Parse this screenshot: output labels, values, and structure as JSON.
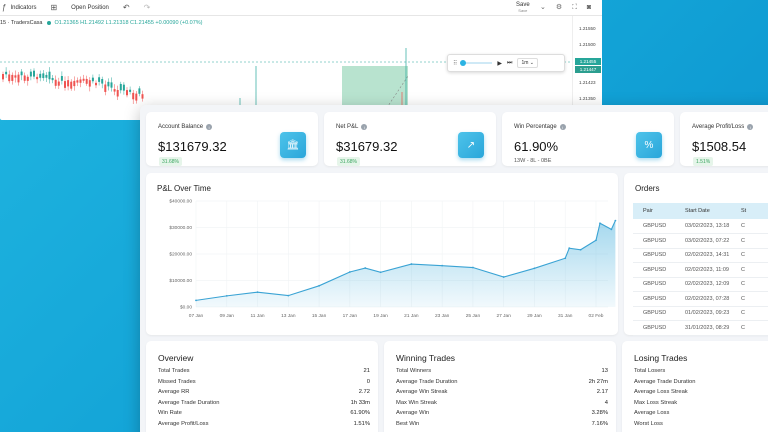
{
  "tv": {
    "toolbar": {
      "indicators": "Indicators",
      "open_position": "Open Position",
      "save": "Save",
      "save_sub": "Save"
    },
    "symbol": {
      "name": "15 · TradersCasa",
      "ohlc": "O1.21365 H1.21492 L1.21318 C1.21455 +0.00090 (+0.07%)"
    },
    "price_levels": [
      "1.21550",
      "1.21500",
      "1.21423",
      "1.21350"
    ],
    "price_tags": [
      "1.21455",
      "1.21447"
    ],
    "replay": {
      "interval": "1m"
    }
  },
  "stats": [
    {
      "label": "Account Balance",
      "value": "$131679.32",
      "pill": "31.68%",
      "icon": "bank-icon"
    },
    {
      "label": "Net P&L",
      "value": "$31679.32",
      "pill": "31.68%",
      "icon": "trend-up-icon"
    },
    {
      "label": "Win Percentage",
      "value": "61.90%",
      "sub": "13W - 8L - 0BE",
      "icon": "percent-icon"
    },
    {
      "label": "Average Profit/Loss",
      "value": "$1508.54",
      "pill": "1.51%"
    }
  ],
  "pnl": {
    "title": "P&L Over Time"
  },
  "chart_data": {
    "type": "area",
    "title": "P&L Over Time",
    "xlabel": "",
    "ylabel": "",
    "y_ticks": [
      "$40000.00",
      "$30000.00",
      "$20000.00",
      "$10000.00",
      "$0.00"
    ],
    "ylim": [
      0,
      40000
    ],
    "x_ticks": [
      "07 Jan",
      "09 Jan",
      "11 Jan",
      "13 Jan",
      "15 Jan",
      "17 Jan",
      "19 Jan",
      "21 Jan",
      "23 Jan",
      "25 Jan",
      "27 Jan",
      "29 Jan",
      "31 Jan",
      "02 Feb"
    ],
    "x": [
      "07 Jan",
      "09 Jan",
      "11 Jan",
      "13 Jan",
      "15 Jan",
      "17 Jan",
      "18 Jan",
      "19 Jan",
      "21 Jan",
      "23 Jan",
      "25 Jan",
      "27 Jan",
      "29 Jan",
      "31 Jan",
      "31 Jan",
      "01 Feb",
      "02 Feb",
      "02 Feb",
      "03 Feb",
      "03 Feb"
    ],
    "values": [
      2500,
      4200,
      5600,
      4300,
      8000,
      13200,
      14700,
      13100,
      16200,
      15600,
      14900,
      11300,
      14600,
      18400,
      22200,
      21600,
      25200,
      31600,
      29300,
      32600
    ],
    "grid": true,
    "color": "#5bb8e0"
  },
  "orders": {
    "title": "Orders",
    "columns": [
      "Pair",
      "Start Date",
      "St"
    ],
    "rows": [
      [
        "GBPUSD",
        "03/02/2023, 13:18",
        "C"
      ],
      [
        "GBPUSD",
        "03/02/2023, 07:22",
        "C"
      ],
      [
        "GBPUSD",
        "02/02/2023, 14:31",
        "C"
      ],
      [
        "GBPUSD",
        "02/02/2023, 11:09",
        "C"
      ],
      [
        "GBPUSD",
        "02/02/2023, 12:09",
        "C"
      ],
      [
        "GBPUSD",
        "02/02/2023, 07:28",
        "C"
      ],
      [
        "GBPUSD",
        "01/02/2023, 09:23",
        "C"
      ],
      [
        "GBPUSD",
        "31/01/2023, 08:29",
        "C"
      ]
    ]
  },
  "overview": {
    "title": "Overview",
    "rows": [
      [
        "Total Trades",
        "21"
      ],
      [
        "Missed Trades",
        "0"
      ],
      [
        "Average RR",
        "2.72"
      ],
      [
        "Average Trade Duration",
        "1h 33m"
      ],
      [
        "Win Rate",
        "61.90%"
      ],
      [
        "Average Profit/Loss",
        "1.51%"
      ]
    ]
  },
  "winning": {
    "title": "Winning Trades",
    "rows": [
      [
        "Total Winners",
        "13"
      ],
      [
        "Average Trade Duration",
        "2h 27m"
      ],
      [
        "Average Win Streak",
        "2.17"
      ],
      [
        "Max Win Streak",
        "4"
      ],
      [
        "Average Win",
        "3.28%"
      ],
      [
        "Best Win",
        "7.16%"
      ]
    ]
  },
  "losing": {
    "title": "Losing Trades",
    "rows": [
      [
        "Total Losers",
        ""
      ],
      [
        "Average Trade Duration",
        ""
      ],
      [
        "Average Loss Streak",
        ""
      ],
      [
        "Max Loss Streak",
        ""
      ],
      [
        "Average Loss",
        ""
      ],
      [
        "Worst Loss",
        ""
      ]
    ]
  }
}
